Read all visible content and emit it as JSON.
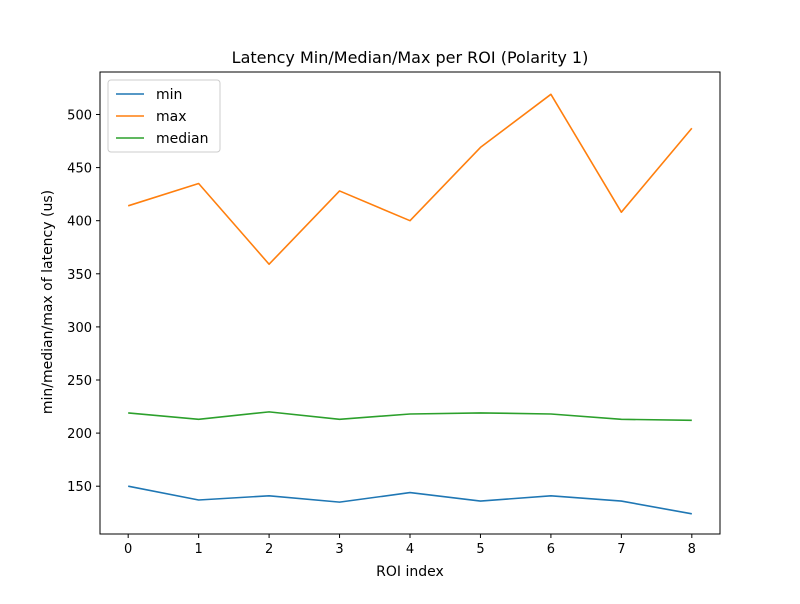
{
  "chart_data": {
    "type": "line",
    "title": "Latency Min/Median/Max per ROI (Polarity 1)",
    "xlabel": "ROI index",
    "ylabel": "min/median/max of latency (us)",
    "x": [
      0,
      1,
      2,
      3,
      4,
      5,
      6,
      7,
      8
    ],
    "xlim": [
      -0.4,
      8.4
    ],
    "ylim": [
      105,
      540
    ],
    "xticks": [
      0,
      1,
      2,
      3,
      4,
      5,
      6,
      7,
      8
    ],
    "yticks": [
      150,
      200,
      250,
      300,
      350,
      400,
      450,
      500
    ],
    "grid": false,
    "legend_position": "top-left",
    "series": [
      {
        "name": "min",
        "color": "#1f77b4",
        "values": [
          150,
          137,
          141,
          135,
          144,
          136,
          141,
          136,
          124
        ]
      },
      {
        "name": "max",
        "color": "#ff7f0e",
        "values": [
          414,
          435,
          359,
          428,
          400,
          469,
          519,
          408,
          487
        ]
      },
      {
        "name": "median",
        "color": "#2ca02c",
        "values": [
          219,
          213,
          220,
          213,
          218,
          219,
          218,
          213,
          212
        ]
      }
    ]
  }
}
